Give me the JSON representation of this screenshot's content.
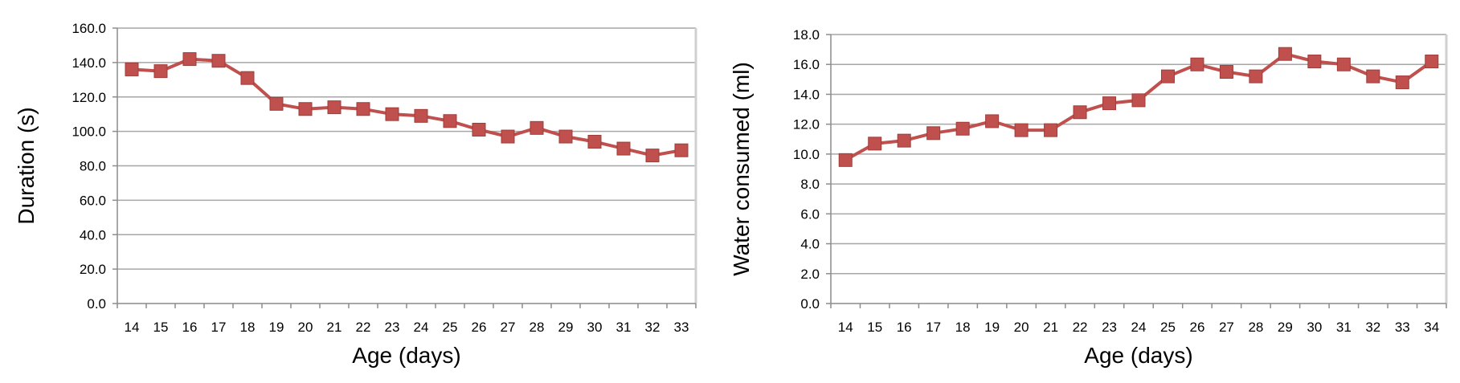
{
  "chart_data": [
    {
      "type": "line",
      "title": "",
      "xlabel": "Age (days)",
      "ylabel": "Duration (s)",
      "categories": [
        "14",
        "15",
        "16",
        "17",
        "18",
        "19",
        "20",
        "21",
        "22",
        "23",
        "24",
        "25",
        "26",
        "27",
        "28",
        "29",
        "30",
        "31",
        "32",
        "33"
      ],
      "series": [
        {
          "values": [
            136,
            135,
            142,
            141,
            131,
            116,
            113,
            114,
            113,
            110,
            109,
            106,
            101,
            97,
            102,
            97,
            94,
            90,
            86,
            89
          ]
        }
      ],
      "ylim": [
        0,
        160
      ],
      "yticks": [
        "0.0",
        "20.0",
        "40.0",
        "60.0",
        "80.0",
        "100.0",
        "120.0",
        "140.0",
        "160.0"
      ],
      "grid": true,
      "legend": "none",
      "marker": "square",
      "color": "#c0504d"
    },
    {
      "type": "line",
      "title": "",
      "xlabel": "Age (days)",
      "ylabel": "Water consumed (ml)",
      "categories": [
        "14",
        "15",
        "16",
        "17",
        "18",
        "19",
        "20",
        "21",
        "22",
        "23",
        "24",
        "25",
        "26",
        "27",
        "28",
        "29",
        "30",
        "31",
        "32",
        "33",
        "34"
      ],
      "series": [
        {
          "values": [
            9.6,
            10.7,
            10.9,
            11.4,
            11.7,
            12.2,
            11.6,
            11.6,
            12.8,
            13.4,
            13.6,
            15.2,
            16.0,
            15.5,
            15.2,
            16.7,
            16.2,
            16.0,
            15.2,
            14.8,
            16.2
          ]
        }
      ],
      "ylim": [
        0,
        18
      ],
      "yticks": [
        "0.0",
        "2.0",
        "4.0",
        "6.0",
        "8.0",
        "10.0",
        "12.0",
        "14.0",
        "16.0",
        "18.0"
      ],
      "grid": true,
      "legend": "none",
      "marker": "square",
      "color": "#c0504d"
    }
  ]
}
